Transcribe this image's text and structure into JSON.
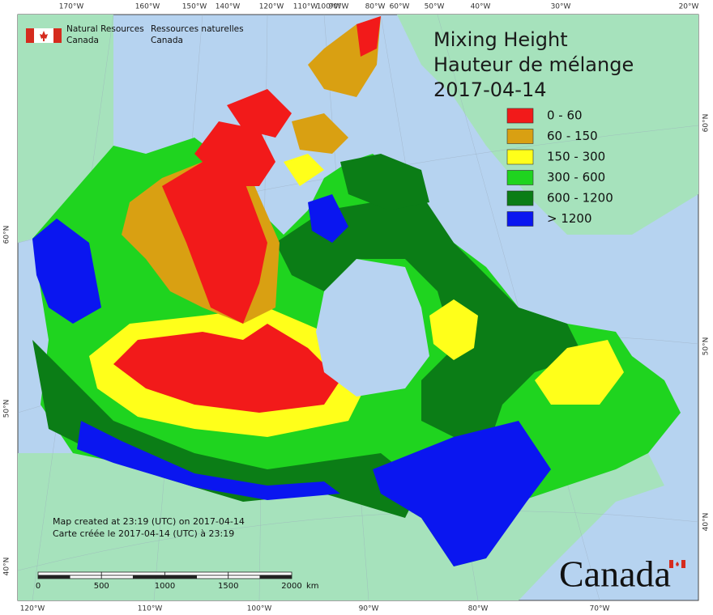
{
  "header": {
    "organization_en": [
      "Natural Resources",
      "Canada"
    ],
    "organization_fr": [
      "Ressources naturelles",
      "Canada"
    ],
    "title_en": "Mixing Height",
    "title_fr": "Hauteur de mélange",
    "date": "2017-04-14"
  },
  "legend": {
    "items": [
      {
        "label": "0 - 60",
        "color": "#f21a1a"
      },
      {
        "label": "60 - 150",
        "color": "#d9a012"
      },
      {
        "label": "150 - 300",
        "color": "#ffff1a"
      },
      {
        "label": "300 - 600",
        "color": "#1fd41f"
      },
      {
        "label": "600 - 1200",
        "color": "#0b7d16"
      },
      {
        "label": "> 1200",
        "color": "#0a16f0"
      }
    ]
  },
  "axes": {
    "top": [
      "170°W",
      "160°W",
      "150°W",
      "140°W",
      "120°W",
      "110°W",
      "100°W",
      "90°W",
      "80°W",
      "60°W",
      "50°W",
      "40°W",
      "30°W",
      "20°W"
    ],
    "bottom": [
      "120°W",
      "110°W",
      "100°W",
      "90°W",
      "80°W",
      "70°W"
    ],
    "left": [
      "60°N",
      "50°N",
      "40°N"
    ],
    "right": [
      "60°N",
      "50°N",
      "40°N"
    ]
  },
  "notes": {
    "created_en": "Map created at 23:19 (UTC) on 2017-04-14",
    "created_fr": "Carte créée le 2017-04-14 (UTC) à 23:19"
  },
  "scale": {
    "labels": [
      "0",
      "500",
      "1000",
      "1500",
      "2000"
    ],
    "unit": "km"
  },
  "footer": {
    "wordmark": "Canada"
  }
}
